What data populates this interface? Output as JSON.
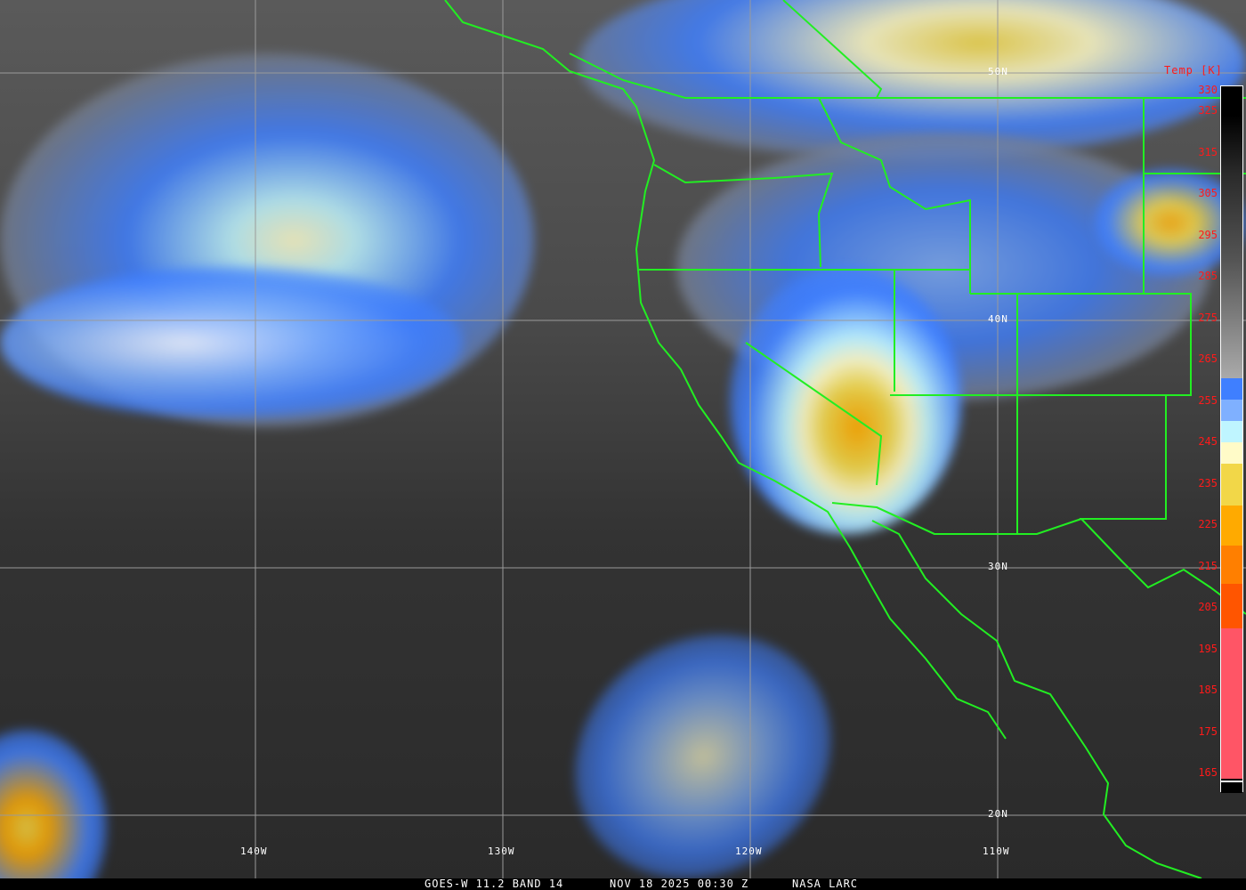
{
  "grid": {
    "longitudes": [
      "140W",
      "130W",
      "120W",
      "110W"
    ],
    "latitudes": [
      "50N",
      "40N",
      "30N",
      "20N"
    ]
  },
  "colorbar": {
    "title": "Temp [K]",
    "ticks": [
      "330",
      "325",
      "315",
      "305",
      "295",
      "285",
      "275",
      "265",
      "255",
      "245",
      "235",
      "225",
      "215",
      "205",
      "195",
      "185",
      "175",
      "165"
    ],
    "colors": {
      "blue": "#3f7fff",
      "light_blue": "#7fb0ff",
      "cyan": "#bff5ff",
      "cream": "#fffbc8",
      "yellow": "#f2d748",
      "orange": "#ffaa00",
      "dark_orange": "#ff7f00",
      "red_orange": "#ff5500",
      "pink": "#ff5566"
    }
  },
  "caption": {
    "product": "GOES-W 11.2 BAND 14",
    "datetime": "NOV 18 2025 00:30 Z",
    "source": "NASA LARC"
  },
  "map": {
    "boundary_color": "#22ee22",
    "grid_color": "#9a9a9a"
  }
}
